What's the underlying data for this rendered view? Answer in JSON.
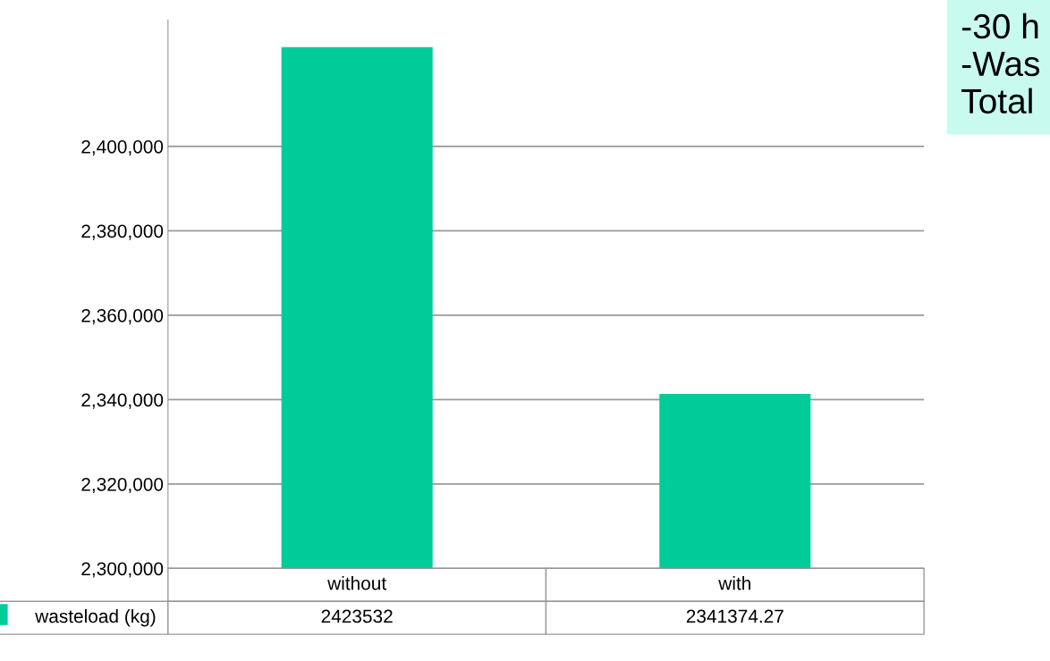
{
  "chart_data": {
    "type": "bar",
    "categories": [
      "without",
      "with"
    ],
    "series": [
      {
        "name": "wasteload (kg)",
        "color": "#00cc99",
        "values": [
          2423532,
          2341374.27
        ],
        "value_labels": [
          "2423532",
          "2341374.27"
        ]
      }
    ],
    "ylim": [
      2300000,
      2430000
    ],
    "yticks": [
      {
        "value": 2300000,
        "label": "2,300,000"
      },
      {
        "value": 2320000,
        "label": "2,320,000"
      },
      {
        "value": 2340000,
        "label": "2,340,000"
      },
      {
        "value": 2360000,
        "label": "2,360,000"
      },
      {
        "value": 2380000,
        "label": "2,380,000"
      },
      {
        "value": 2400000,
        "label": "2,400,000"
      }
    ],
    "grid": "y",
    "annotations": [
      "-30 h\n-Was\nTotal"
    ]
  }
}
